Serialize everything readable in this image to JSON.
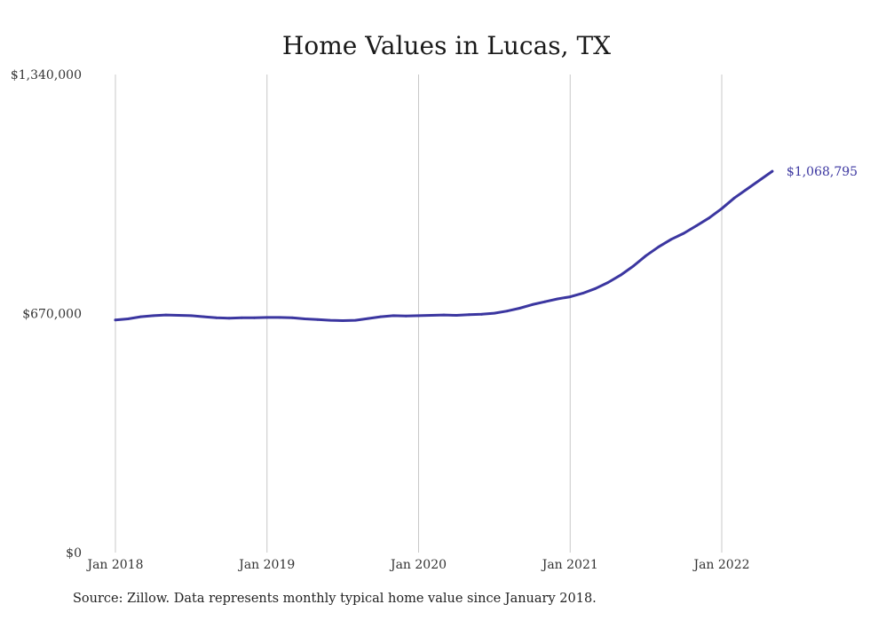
{
  "chart_data": {
    "type": "line",
    "title": "Home Values in Lucas, TX",
    "xlabel": "",
    "ylabel": "",
    "ylim": [
      0,
      1340000
    ],
    "y_ticks": [
      {
        "value": 0,
        "label": "$0"
      },
      {
        "value": 670000,
        "label": "$670,000"
      },
      {
        "value": 1340000,
        "label": "$1,340,000"
      }
    ],
    "x_ticks": [
      {
        "value": 0,
        "label": "Jan 2018"
      },
      {
        "value": 12,
        "label": "Jan 2019"
      },
      {
        "value": 24,
        "label": "Jan 2020"
      },
      {
        "value": 36,
        "label": "Jan 2021"
      },
      {
        "value": 48,
        "label": "Jan 2022"
      }
    ],
    "grid": "vertical",
    "legend": "none",
    "series": [
      {
        "color": "#3b36a0",
        "end_label": "$1,068,795",
        "values": [
          652000,
          655000,
          661000,
          664000,
          666000,
          665000,
          664000,
          661000,
          658000,
          657000,
          658000,
          658000,
          659000,
          659000,
          658000,
          655000,
          653000,
          651000,
          650000,
          651000,
          656000,
          661000,
          664000,
          663000,
          664000,
          665000,
          666000,
          665000,
          667000,
          668000,
          671000,
          677000,
          685000,
          695000,
          703000,
          711000,
          717000,
          727000,
          740000,
          757000,
          778000,
          803000,
          832000,
          857000,
          878000,
          895000,
          916000,
          938000,
          964000,
          994000,
          1019000,
          1044000,
          1068795
        ]
      }
    ]
  },
  "source": "Source: Zillow. Data represents monthly typical home value since January 2018."
}
